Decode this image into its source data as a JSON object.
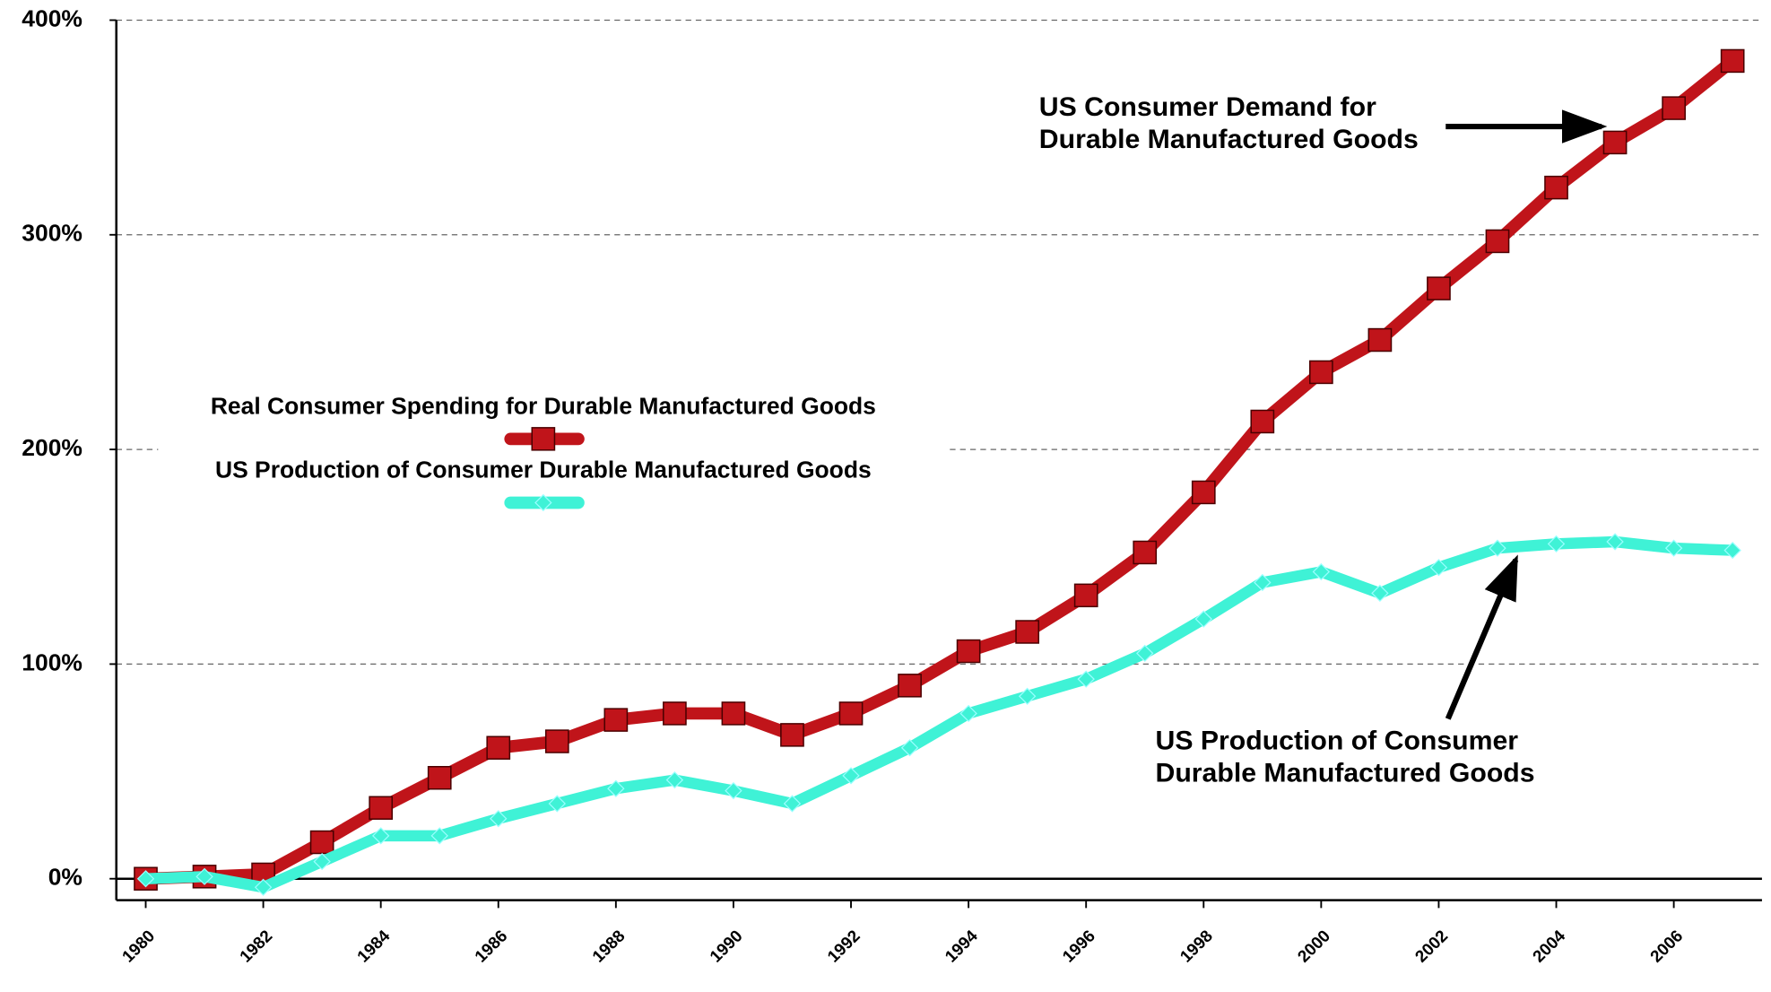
{
  "chart_data": {
    "type": "line",
    "x": [
      1980,
      1981,
      1982,
      1983,
      1984,
      1985,
      1986,
      1987,
      1988,
      1989,
      1990,
      1991,
      1992,
      1993,
      1994,
      1995,
      1996,
      1997,
      1998,
      1999,
      2000,
      2001,
      2002,
      2003,
      2004,
      2005,
      2006,
      2007
    ],
    "series": [
      {
        "name": "Real Consumer Spending for Durable Manufactured Goods",
        "color": "#c0141a",
        "values": [
          0,
          1,
          2,
          17,
          33,
          47,
          61,
          64,
          74,
          77,
          77,
          67,
          77,
          90,
          106,
          115,
          132,
          152,
          180,
          213,
          236,
          251,
          275,
          297,
          322,
          343,
          359,
          381
        ]
      },
      {
        "name": "US Production of Consumer Durable Manufactured Goods",
        "color": "#3ff2d6",
        "values": [
          0,
          1,
          -4,
          8,
          20,
          20,
          28,
          35,
          42,
          46,
          41,
          35,
          48,
          61,
          77,
          85,
          93,
          105,
          121,
          138,
          143,
          133,
          145,
          154,
          156,
          157,
          154,
          153
        ]
      }
    ],
    "xlim": [
      1979.5,
      2007.5
    ],
    "xticks": [
      1980,
      1982,
      1984,
      1986,
      1988,
      1990,
      1992,
      1994,
      1996,
      1998,
      2000,
      2002,
      2004,
      2006
    ],
    "ylim": [
      -10,
      400
    ],
    "yticks": [
      {
        "value": 0,
        "label": "0%"
      },
      {
        "value": 100,
        "label": "100%"
      },
      {
        "value": 200,
        "label": "200%"
      },
      {
        "value": 300,
        "label": "300%"
      },
      {
        "value": 400,
        "label": "400%"
      }
    ],
    "grid": true,
    "annotations": [
      {
        "lines": [
          "US Consumer Demand for",
          "Durable Manufactured Goods"
        ]
      },
      {
        "lines": [
          "US Production of Consumer",
          "Durable Manufactured Goods"
        ]
      }
    ]
  }
}
